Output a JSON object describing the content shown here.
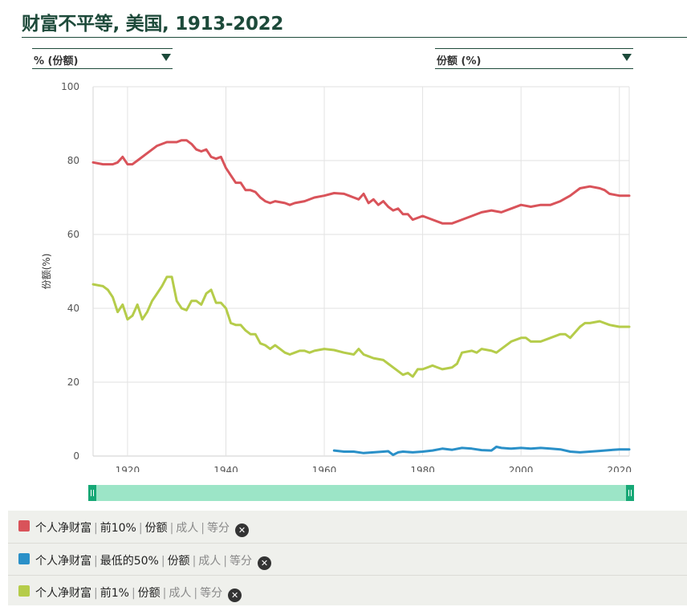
{
  "title": "财富不平等, 美国, 1913-2022",
  "controls": {
    "unit_dropdown": "% (份额)",
    "metric_dropdown": "份额 (%)"
  },
  "chart_data": {
    "type": "line",
    "title": "财富不平等, 美国, 1913-2022",
    "ylabel": "份额(%)",
    "xlabel": "",
    "xlim": [
      1913,
      2022
    ],
    "ylim": [
      0,
      100
    ],
    "x_ticks": [
      1920,
      1940,
      1960,
      1980,
      2000,
      2020
    ],
    "y_ticks": [
      0,
      20,
      40,
      60,
      80,
      100
    ],
    "grid": true,
    "legend_position": "bottom",
    "series": [
      {
        "name": "前10%",
        "color": "#d9535a",
        "x": [
          1913,
          1915,
          1917,
          1918,
          1919,
          1920,
          1921,
          1922,
          1924,
          1926,
          1928,
          1930,
          1931,
          1932,
          1933,
          1934,
          1935,
          1936,
          1937,
          1938,
          1939,
          1940,
          1941,
          1942,
          1943,
          1944,
          1945,
          1946,
          1947,
          1948,
          1949,
          1950,
          1952,
          1953,
          1954,
          1956,
          1958,
          1960,
          1962,
          1964,
          1965,
          1966,
          1967,
          1968,
          1969,
          1970,
          1971,
          1972,
          1973,
          1974,
          1975,
          1976,
          1977,
          1978,
          1980,
          1982,
          1984,
          1986,
          1988,
          1990,
          1992,
          1994,
          1996,
          1998,
          2000,
          2002,
          2004,
          2006,
          2008,
          2010,
          2012,
          2014,
          2016,
          2017,
          2018,
          2020,
          2022
        ],
        "y": [
          79.5,
          79,
          79,
          79.5,
          81,
          79,
          79,
          80,
          82,
          84,
          85,
          85,
          85.5,
          85.5,
          84.5,
          83,
          82.5,
          83,
          81,
          80.5,
          81,
          78,
          76,
          74,
          74,
          72,
          72,
          71.5,
          70,
          69,
          68.5,
          69,
          68.5,
          68,
          68.5,
          69,
          70,
          70.5,
          71.2,
          71,
          70.5,
          70,
          69.5,
          71,
          68.5,
          69.5,
          68,
          69,
          67.5,
          66.5,
          67,
          65.5,
          65.5,
          64,
          65,
          64,
          63,
          63,
          64,
          65,
          66,
          66.5,
          66,
          67,
          68,
          67.5,
          68,
          68,
          69,
          70.5,
          72.5,
          73,
          72.5,
          72,
          71,
          70.5,
          70.5
        ]
      },
      {
        "name": "最低的50%",
        "color": "#2a90c8",
        "x": [
          1962,
          1964,
          1966,
          1968,
          1970,
          1972,
          1973,
          1974,
          1975,
          1976,
          1978,
          1980,
          1982,
          1984,
          1986,
          1988,
          1990,
          1992,
          1994,
          1995,
          1996,
          1998,
          2000,
          2002,
          2004,
          2006,
          2008,
          2010,
          2012,
          2014,
          2016,
          2018,
          2020,
          2022
        ],
        "y": [
          1.5,
          1.2,
          1.2,
          0.8,
          1.0,
          1.2,
          1.3,
          0.3,
          1.0,
          1.2,
          1.0,
          1.2,
          1.5,
          2.0,
          1.7,
          2.2,
          2.0,
          1.6,
          1.5,
          2.5,
          2.2,
          2.0,
          2.2,
          2.0,
          2.2,
          2.0,
          1.8,
          1.2,
          1.0,
          1.2,
          1.4,
          1.6,
          1.8,
          1.8
        ]
      },
      {
        "name": "前1%",
        "color": "#b5cc4a",
        "x": [
          1913,
          1915,
          1916,
          1917,
          1918,
          1919,
          1920,
          1921,
          1922,
          1923,
          1924,
          1925,
          1926,
          1927,
          1928,
          1929,
          1930,
          1931,
          1932,
          1933,
          1934,
          1935,
          1936,
          1937,
          1938,
          1939,
          1940,
          1941,
          1942,
          1943,
          1944,
          1945,
          1946,
          1947,
          1948,
          1949,
          1950,
          1951,
          1952,
          1953,
          1954,
          1955,
          1956,
          1957,
          1958,
          1960,
          1962,
          1964,
          1966,
          1967,
          1968,
          1969,
          1970,
          1972,
          1973,
          1974,
          1975,
          1976,
          1977,
          1978,
          1979,
          1980,
          1981,
          1982,
          1983,
          1984,
          1986,
          1987,
          1988,
          1990,
          1991,
          1992,
          1994,
          1995,
          1996,
          1998,
          2000,
          2001,
          2002,
          2004,
          2006,
          2008,
          2009,
          2010,
          2012,
          2013,
          2014,
          2016,
          2018,
          2020,
          2022
        ],
        "y": [
          46.5,
          46,
          45,
          43,
          39,
          41,
          37,
          38,
          41,
          37,
          39,
          42,
          44,
          46,
          48.5,
          48.5,
          42,
          40,
          39.5,
          42,
          42,
          41,
          44,
          45,
          41.5,
          41.5,
          40,
          36,
          35.5,
          35.5,
          34,
          33,
          33,
          30.5,
          30,
          29,
          30,
          29,
          28,
          27.5,
          28,
          28.5,
          28.5,
          28,
          28.5,
          29,
          28.7,
          28,
          27.5,
          29,
          27.5,
          27,
          26.5,
          26,
          25,
          24,
          23,
          22,
          22.5,
          21.5,
          23.5,
          23.5,
          24,
          24.5,
          24,
          23.5,
          24,
          25,
          28,
          28.5,
          28,
          29,
          28.5,
          28,
          29,
          31,
          32,
          32,
          31,
          31,
          32,
          33,
          33,
          32,
          35,
          36,
          36,
          36.5,
          35.5,
          35,
          35
        ]
      }
    ]
  },
  "legend": [
    {
      "dataset": "个人净财富",
      "group": "前10%",
      "measure": "份额",
      "unit": "成人",
      "method": "等分",
      "color": "#d9535a"
    },
    {
      "dataset": "个人净财富",
      "group": "最低的50%",
      "measure": "份额",
      "unit": "成人",
      "method": "等分",
      "color": "#2a90c8"
    },
    {
      "dataset": "个人净财富",
      "group": "前1%",
      "measure": "份额",
      "unit": "成人",
      "method": "等分",
      "color": "#b5cc4a"
    }
  ]
}
